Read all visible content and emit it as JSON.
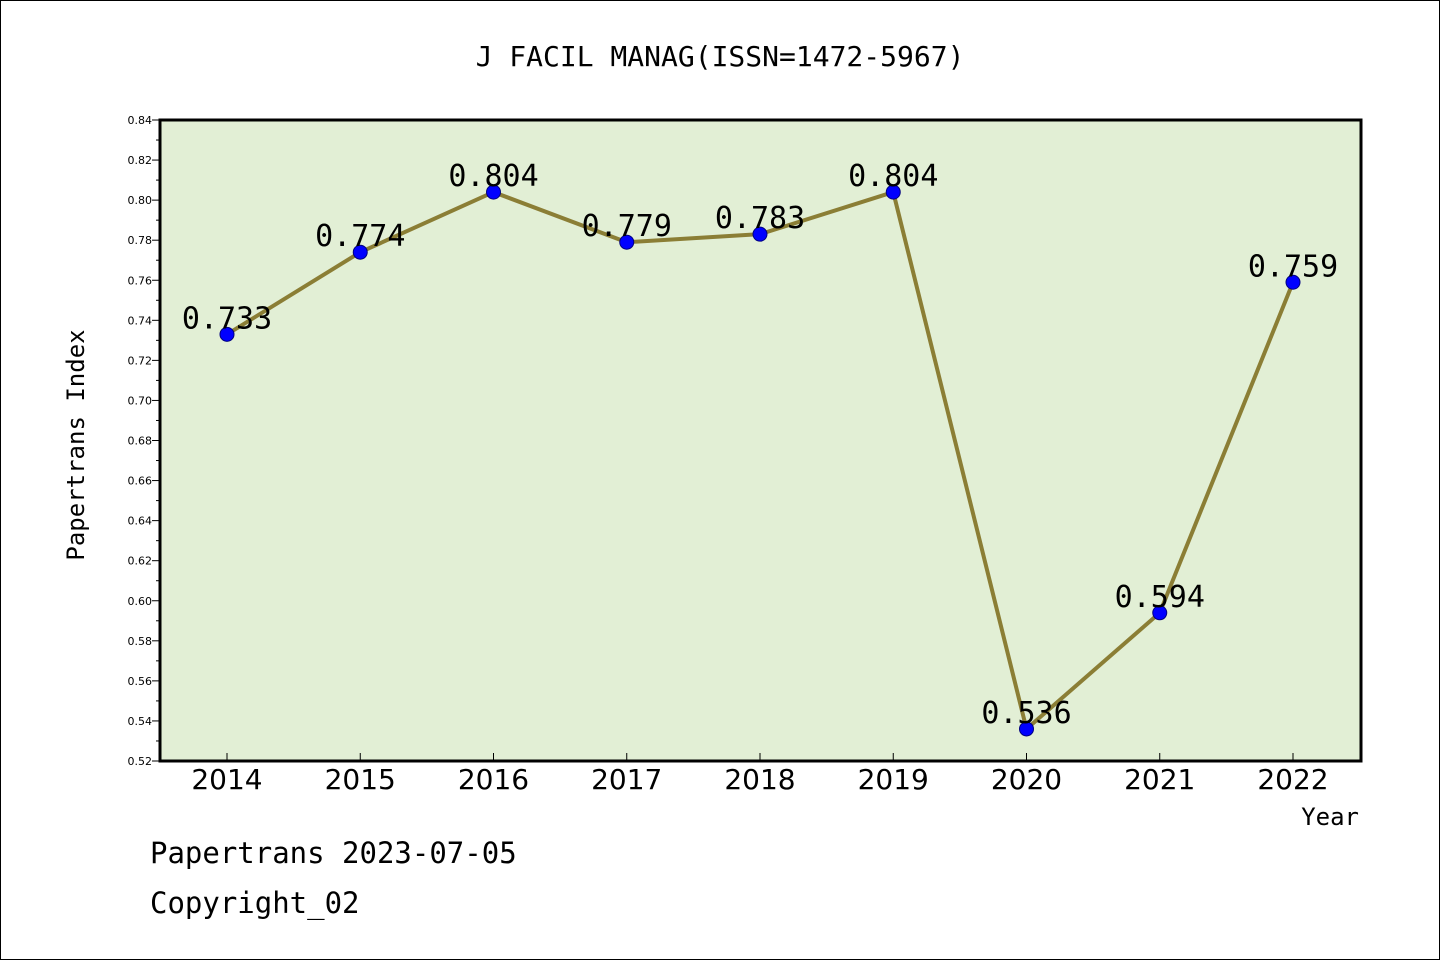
{
  "chart_data": {
    "type": "line",
    "title": "J FACIL MANAG(ISSN=1472-5967)",
    "xlabel": "Year",
    "ylabel": "Papertrans Index",
    "categories": [
      "2014",
      "2015",
      "2016",
      "2017",
      "2018",
      "2019",
      "2020",
      "2021",
      "2022"
    ],
    "values": [
      0.733,
      0.774,
      0.804,
      0.779,
      0.783,
      0.804,
      0.536,
      0.594,
      0.759
    ],
    "value_labels": [
      "0.733",
      "0.774",
      "0.804",
      "0.779",
      "0.783",
      "0.804",
      "0.536",
      "0.594",
      "0.759"
    ],
    "ylim": [
      0.52,
      0.84
    ],
    "yticks": [
      "0.52",
      "0.54",
      "0.56",
      "0.58",
      "0.60",
      "0.62",
      "0.64",
      "0.66",
      "0.68",
      "0.70",
      "0.72",
      "0.74",
      "0.76",
      "0.78",
      "0.80",
      "0.82",
      "0.84"
    ],
    "grid": false,
    "legend": "none",
    "colors": {
      "plot_background": "#e2efd5",
      "line": "#8b7e35",
      "marker": "#0000ff",
      "marker_edge": "#000080"
    }
  },
  "footer": {
    "date_line": "Papertrans 2023-07-05",
    "copyright_line": "Copyright_02"
  }
}
